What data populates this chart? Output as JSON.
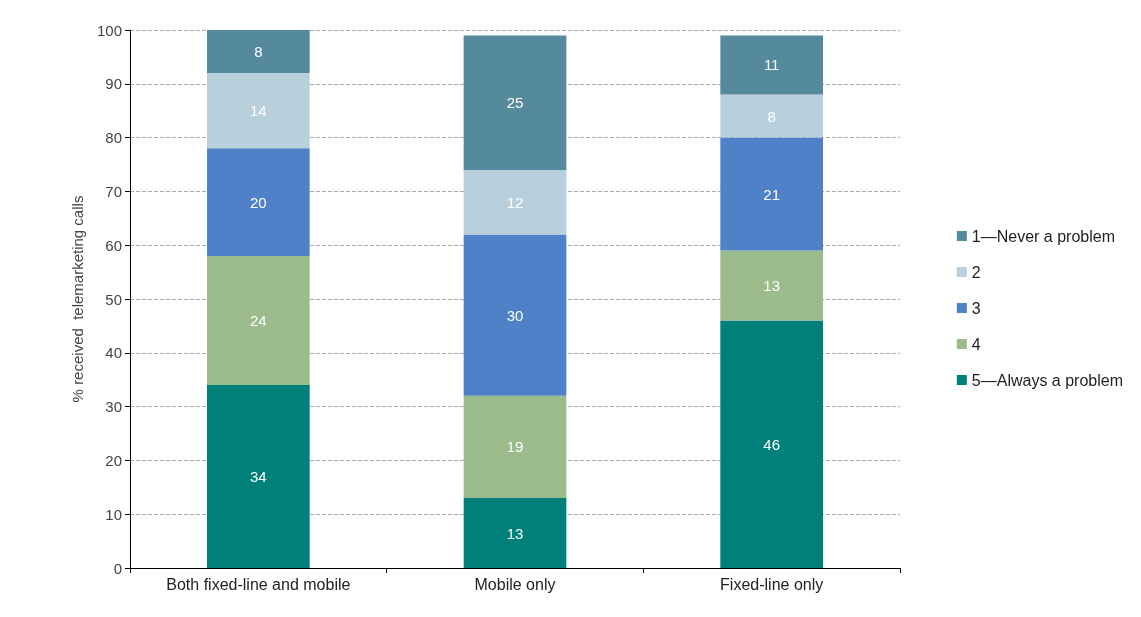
{
  "chart_data": {
    "type": "bar",
    "stacked": true,
    "ylabel": "% received  telemarketing calls",
    "categories": [
      "Both fixed-line and mobile",
      "Mobile only",
      "Fixed-line only"
    ],
    "series": [
      {
        "name": "5—Always a problem",
        "color": "#00807a",
        "values": [
          34,
          13,
          46
        ]
      },
      {
        "name": "4",
        "color": "#9bbb8b",
        "values": [
          24,
          19,
          13
        ]
      },
      {
        "name": "3",
        "color": "#4f81c9",
        "values": [
          20,
          30,
          21
        ]
      },
      {
        "name": "2",
        "color": "#b8d0dc",
        "values": [
          14,
          12,
          8
        ]
      },
      {
        "name": "1—Never a problem",
        "color": "#558a9c",
        "values": [
          8,
          25,
          11
        ]
      }
    ],
    "ylim": [
      0,
      100
    ],
    "yticks": [
      0,
      10,
      20,
      30,
      40,
      50,
      60,
      70,
      80,
      90,
      100
    ],
    "grid": "y",
    "legend": "right",
    "data_labels": true
  }
}
